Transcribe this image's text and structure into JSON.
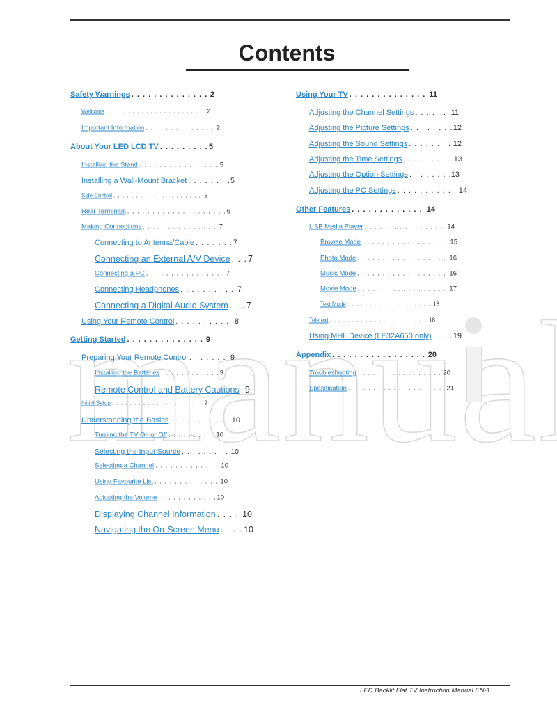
{
  "title": "Contents",
  "footer": "LED Backlit Flat TV Instruction Manual EN-1",
  "link_color": "#2e86c8",
  "watermark": "manuali",
  "left": [
    {
      "label": "Safety Warnings",
      "page": "2"
    },
    {
      "label": "Welcome",
      "page": "2"
    },
    {
      "label": "Important Information",
      "page": "2"
    },
    {
      "label": "About Your LED LCD TV",
      "page": "5"
    },
    {
      "label": "Installing the Stand",
      "page": "5"
    },
    {
      "label": "Installing a Wall-Mount Bracket",
      "page": "5"
    },
    {
      "label": "Side Control",
      "page": "5"
    },
    {
      "label": "Rear Terminals",
      "page": "6"
    },
    {
      "label": "Making Connections",
      "page": "7"
    },
    {
      "label": "Connecting to Antenna/Cable",
      "page": "7"
    },
    {
      "label": "Connecting an External A/V Device",
      "page": "7"
    },
    {
      "label": "Connecting a PC",
      "page": "7"
    },
    {
      "label": "Connecting Headphones",
      "page": "7"
    },
    {
      "label": "Connecting a Digital Audio System",
      "page": "7"
    },
    {
      "label": "Using Your Remote Control",
      "page": "8"
    },
    {
      "label": "Getting Started",
      "page": "9"
    },
    {
      "label": "Preparing Your Remote Control",
      "page": "9"
    },
    {
      "label": "Installing the Batteries",
      "page": "9"
    },
    {
      "label": "Remote Control and Battery Cautions",
      "page": "9"
    },
    {
      "label": "Initial Setup",
      "page": "9"
    },
    {
      "label": "Understanding the Basics",
      "page": "10"
    },
    {
      "label": "Turning the TV On or Off",
      "page": "10"
    },
    {
      "label": "Selecting the Input Source",
      "page": "10"
    },
    {
      "label": "Selecting a Channel",
      "page": "10"
    },
    {
      "label": "Using Favourite List",
      "page": "10"
    },
    {
      "label": "Adjusting the Volume",
      "page": "10"
    },
    {
      "label": "Displaying Channel Information",
      "page": "10"
    },
    {
      "label": "Navigating the On-Screen Menu",
      "page": "10"
    }
  ],
  "right": [
    {
      "label": "Using Your TV",
      "page": "11"
    },
    {
      "label": "Adjusting the Channel Settings",
      "page": "11"
    },
    {
      "label": "Adjusting the Picture Settings",
      "page": "12"
    },
    {
      "label": "Adjusting the Sound Settings",
      "page": "12"
    },
    {
      "label": "Adjusting the Time Settings",
      "page": "13"
    },
    {
      "label": "Adjusting the Option Settings",
      "page": "13"
    },
    {
      "label": "Adjusting the PC Settings",
      "page": "14"
    },
    {
      "label": "Other Features",
      "page": "14"
    },
    {
      "label": "USB Media Player",
      "page": "14"
    },
    {
      "label": "Browse Mode",
      "page": "15"
    },
    {
      "label": "Photo Mode",
      "page": "16"
    },
    {
      "label": "Music Mode",
      "page": "16"
    },
    {
      "label": "Movie Mode",
      "page": "17"
    },
    {
      "label": "Text Mode",
      "page": "18"
    },
    {
      "label": "Teletext",
      "page": "18"
    },
    {
      "label": "Using MHL Device (LE32A650 only)",
      "page": "19"
    },
    {
      "label": "Appendix",
      "page": "20"
    },
    {
      "label": "Troubleshooting",
      "page": "20"
    },
    {
      "label": "Specification",
      "page": "21"
    }
  ]
}
